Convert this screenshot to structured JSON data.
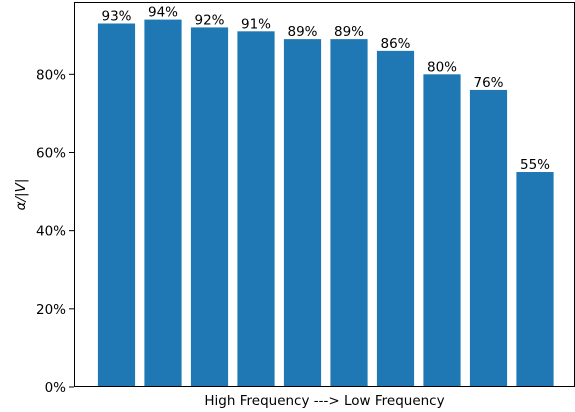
{
  "chart_data": {
    "type": "bar",
    "categories": [
      "",
      "",
      "",
      "",
      "",
      "",
      "",
      "",
      "",
      ""
    ],
    "values": [
      93,
      94,
      92,
      91,
      89,
      89,
      86,
      80,
      76,
      55
    ],
    "data_labels": [
      "93%",
      "94%",
      "92%",
      "91%",
      "89%",
      "89%",
      "86%",
      "80%",
      "76%",
      "55%"
    ],
    "xlabel": "High Frequency ---> Low Frequency",
    "ylabel": "α/|V|",
    "ylim": [
      0,
      98.5
    ],
    "yticks": [
      0,
      20,
      40,
      60,
      80
    ],
    "ytick_labels": [
      "0%",
      "20%",
      "40%",
      "60%",
      "80%"
    ],
    "grid": false,
    "bar_color": "#1f77b4"
  }
}
